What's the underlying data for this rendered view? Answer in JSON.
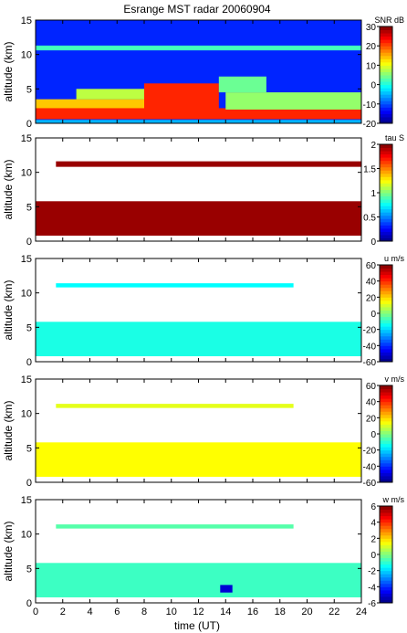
{
  "chart_data": {
    "title": "Esrange MST radar 20060904",
    "xlabel": "time (UT)",
    "xlim": [
      0,
      24
    ],
    "xticks": [
      0,
      2,
      4,
      6,
      8,
      10,
      12,
      14,
      16,
      18,
      20,
      22,
      24
    ],
    "type": "heatmap",
    "colormap": "jet",
    "panels": [
      {
        "id": "snr",
        "type": "heatmap",
        "ylabel": "altitude (km)",
        "ylim": [
          0,
          15
        ],
        "yticks": [
          0,
          5,
          10,
          15
        ],
        "colorbar_label": "SNR dB",
        "clim": [
          -20,
          30
        ],
        "cticks": [
          -20,
          -10,
          0,
          10,
          20,
          30
        ],
        "layers": [
          {
            "t0": 0,
            "t1": 24,
            "h0": 0.0,
            "h1": 15.0,
            "value": -12
          },
          {
            "t0": 0,
            "t1": 24,
            "h0": 10.6,
            "h1": 11.3,
            "value": 2
          },
          {
            "t0": 0,
            "t1": 8,
            "h0": 0.8,
            "h1": 3.5,
            "value": 14
          },
          {
            "t0": 3,
            "t1": 8,
            "h0": 3.5,
            "h1": 5.0,
            "value": 8
          },
          {
            "t0": 0,
            "t1": 24,
            "h0": 0.6,
            "h1": 2.2,
            "value": 22
          },
          {
            "t0": 8,
            "t1": 13.5,
            "h0": 0.8,
            "h1": 5.8,
            "value": 22
          },
          {
            "t0": 14,
            "t1": 24,
            "h0": 2.0,
            "h1": 4.5,
            "value": 6
          },
          {
            "t0": 13.5,
            "t1": 17,
            "h0": 4.5,
            "h1": 6.8,
            "value": 4
          },
          {
            "t0": 0,
            "t1": 24,
            "h0": 0.0,
            "h1": 0.5,
            "value": -5
          }
        ]
      },
      {
        "id": "tau",
        "type": "heatmap",
        "ylabel": "altitude (km)",
        "ylim": [
          0,
          15
        ],
        "yticks": [
          0,
          5,
          10,
          15
        ],
        "colorbar_label": "tau S",
        "clim": [
          0,
          2
        ],
        "cticks": [
          0,
          0.5,
          1,
          1.5,
          2
        ],
        "cticklabels": [
          "0",
          "0.5",
          "1",
          "1.5",
          "2"
        ],
        "layers": [
          {
            "t0": 0,
            "t1": 24,
            "h0": 0.8,
            "h1": 5.8,
            "value": 1.95
          },
          {
            "t0": 1.5,
            "t1": 24,
            "h0": 10.8,
            "h1": 11.6,
            "value": 1.95
          }
        ]
      },
      {
        "id": "u",
        "type": "heatmap",
        "ylabel": "altitude (km)",
        "ylim": [
          0,
          15
        ],
        "yticks": [
          0,
          5,
          10,
          15
        ],
        "colorbar_label": "u m/s",
        "clim": [
          -60,
          60
        ],
        "cticks": [
          -60,
          -40,
          -20,
          0,
          20,
          40,
          60
        ],
        "layers": [
          {
            "t0": 0,
            "t1": 24,
            "h0": 0.8,
            "h1": 5.8,
            "value": -12
          },
          {
            "t0": 1.5,
            "t1": 19,
            "h0": 10.8,
            "h1": 11.4,
            "value": -15
          }
        ]
      },
      {
        "id": "v",
        "type": "heatmap",
        "ylabel": "altitude (km)",
        "ylim": [
          0,
          15
        ],
        "yticks": [
          0,
          5,
          10,
          15
        ],
        "colorbar_label": "v m/s",
        "clim": [
          -60,
          60
        ],
        "cticks": [
          -60,
          -40,
          -20,
          0,
          20,
          40,
          60
        ],
        "layers": [
          {
            "t0": 0,
            "t1": 24,
            "h0": 0.8,
            "h1": 5.8,
            "value": 15
          },
          {
            "t0": 1.5,
            "t1": 19,
            "h0": 10.8,
            "h1": 11.4,
            "value": 12
          }
        ]
      },
      {
        "id": "w",
        "type": "heatmap",
        "ylabel": "altitude (km)",
        "ylim": [
          0,
          15
        ],
        "yticks": [
          0,
          5,
          10,
          15
        ],
        "colorbar_label": "w m/s",
        "clim": [
          -6,
          6
        ],
        "cticks": [
          -6,
          -4,
          -2,
          0,
          2,
          4,
          6
        ],
        "layers": [
          {
            "t0": 0,
            "t1": 24,
            "h0": 0.8,
            "h1": 5.8,
            "value": -0.8
          },
          {
            "t0": 1.5,
            "t1": 19,
            "h0": 10.8,
            "h1": 11.4,
            "value": -0.5
          },
          {
            "t0": 13.6,
            "t1": 14.5,
            "h0": 1.5,
            "h1": 2.6,
            "value": -5
          }
        ]
      }
    ]
  }
}
